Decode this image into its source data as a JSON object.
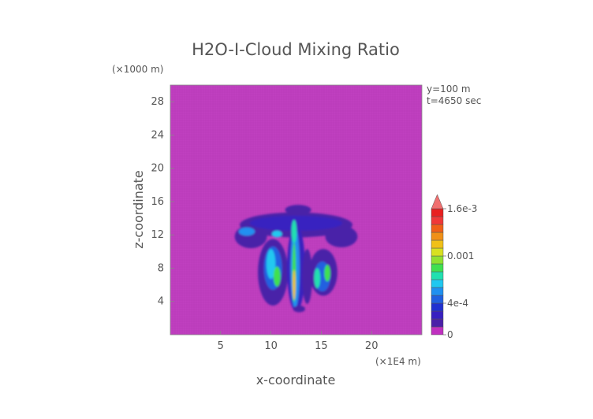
{
  "chart_data": {
    "type": "heatmap",
    "title": "H2O-I-Cloud Mixing Ratio",
    "xlabel": "x-coordinate",
    "ylabel": "z-coordinate",
    "x_unit": "(×1E4 m)",
    "y_unit": "(×1000 m)",
    "annotations": [
      "y=100 m",
      "t=4650 sec"
    ],
    "xlim": [
      0,
      25
    ],
    "ylim": [
      0,
      30
    ],
    "x_ticks": [
      5,
      10,
      15,
      20
    ],
    "y_ticks": [
      4,
      8,
      12,
      16,
      20,
      24,
      28
    ],
    "background_color": "#c040c0",
    "colorbar": {
      "tick_labels": [
        "0",
        "4e-4",
        "0.001",
        "1.6e-3"
      ],
      "tick_positions": [
        0,
        4,
        10,
        16
      ],
      "colors": [
        "#c030c0",
        "#4a20a8",
        "#3820c0",
        "#2030d0",
        "#2060e0",
        "#2090f0",
        "#20c8f0",
        "#20e0b0",
        "#40e050",
        "#90e030",
        "#d8e020",
        "#f0c018",
        "#f09018",
        "#f06018",
        "#f03838",
        "#e82020"
      ],
      "extend_color": "#f07070",
      "grid": true
    },
    "features": [
      {
        "name": "anvil",
        "x": [
          6.5,
          18.5
        ],
        "z": [
          9,
          15.5
        ]
      },
      {
        "name": "core",
        "x": [
          12,
          13
        ],
        "z": [
          3,
          14
        ]
      },
      {
        "name": "left-tower",
        "x": [
          9.5,
          11
        ],
        "z": [
          4,
          11
        ]
      },
      {
        "name": "right-tower",
        "x": [
          14.5,
          16
        ],
        "z": [
          5,
          9
        ]
      }
    ]
  }
}
